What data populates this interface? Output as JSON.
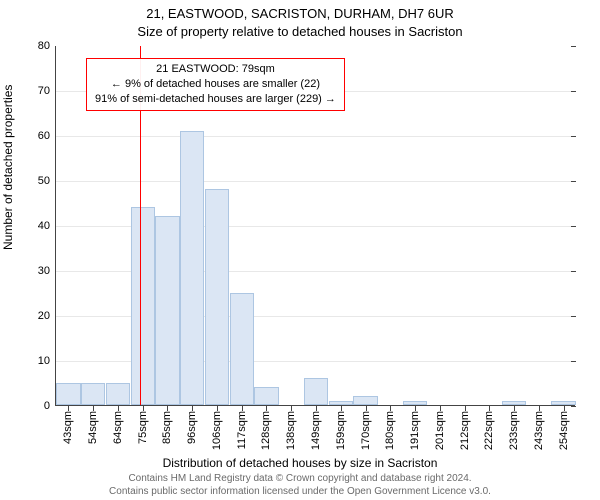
{
  "title": {
    "main": "21, EASTWOOD, SACRISTON, DURHAM, DH7 6UR",
    "sub": "Size of property relative to detached houses in Sacriston"
  },
  "chart": {
    "type": "histogram",
    "ylabel": "Number of detached properties",
    "xlabel": "Distribution of detached houses by size in Sacriston",
    "ylim": [
      0,
      80
    ],
    "ytick_step": 10,
    "xtick_labels": [
      "43sqm",
      "54sqm",
      "64sqm",
      "75sqm",
      "85sqm",
      "96sqm",
      "106sqm",
      "117sqm",
      "128sqm",
      "138sqm",
      "149sqm",
      "159sqm",
      "170sqm",
      "180sqm",
      "191sqm",
      "201sqm",
      "212sqm",
      "222sqm",
      "233sqm",
      "243sqm",
      "254sqm"
    ],
    "bar_values": [
      5,
      5,
      5,
      44,
      42,
      61,
      48,
      25,
      4,
      0,
      6,
      1,
      2,
      0,
      1,
      0,
      0,
      0,
      1,
      0,
      1
    ],
    "bar_color_fill": "#dbe6f4",
    "bar_color_edge": "#adc6e2",
    "grid_color": "#e8e8e8",
    "axis_color": "#444444",
    "background_color": "#ffffff",
    "tick_fontsize": 11,
    "label_fontsize": 12,
    "marker_line": {
      "x_category_index": 3.4,
      "color": "#ff0000",
      "width": 1
    }
  },
  "annotation": {
    "border_color": "#ff0000",
    "lines": {
      "l1": "21 EASTWOOD: 79sqm",
      "l2": "← 9% of detached houses are smaller (22)",
      "l3": "91% of semi-detached houses are larger (229) →"
    }
  },
  "footer": {
    "l1": "Contains HM Land Registry data © Crown copyright and database right 2024.",
    "l2": "Contains public sector information licensed under the Open Government Licence v3.0."
  }
}
